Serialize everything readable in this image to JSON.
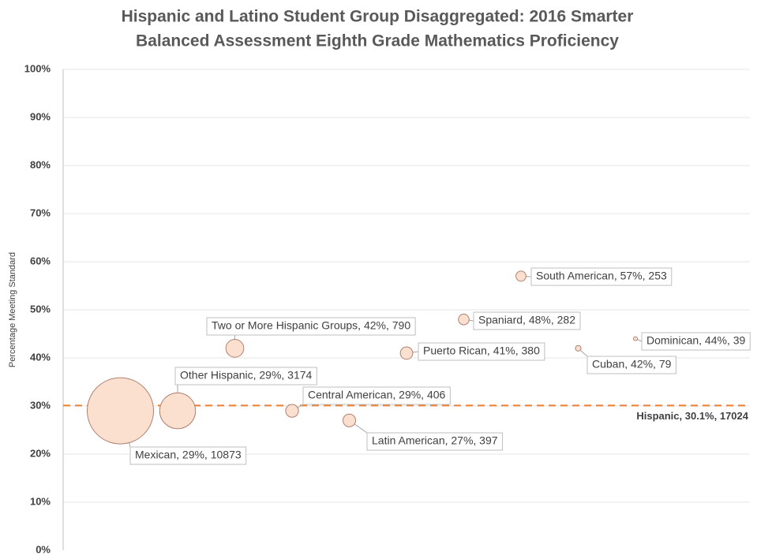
{
  "chart_data": {
    "type": "bubble",
    "title_lines": [
      "Hispanic and Latino Student Group Disaggregated: 2016 Smarter",
      "Balanced Assessment Eighth Grade Mathematics Proficiency"
    ],
    "y_label": "Percentage Meeting Standard",
    "categories": [
      "Mexican",
      "Other Hispanic",
      "Two or More Hispanic Groups",
      "Central American",
      "Latin American",
      "Puerto Rican",
      "Spaniard",
      "South American",
      "Cuban",
      "Dominican"
    ],
    "x": [
      1,
      2,
      3,
      4,
      5,
      6,
      7,
      8,
      9,
      10
    ],
    "values": [
      29,
      29,
      42,
      29,
      27,
      41,
      48,
      57,
      42,
      44
    ],
    "sizes": [
      10873,
      3174,
      790,
      406,
      397,
      380,
      282,
      253,
      79,
      39
    ],
    "value_labels": [
      "Mexican, 29%, 10873",
      "Other Hispanic, 29%, 3174",
      "Two or More Hispanic Groups, 42%, 790",
      "Central American, 29%, 406",
      "Latin American, 27%, 397",
      "Puerto Rican, 41%, 380",
      "Spaniard, 48%, 282",
      "South American, 57%, 253",
      "Cuban, 42%, 79",
      "Dominican, 44%, 39"
    ],
    "color": "#fbe0d0",
    "xlim": [
      0,
      12
    ],
    "ylim": [
      0,
      100
    ],
    "yticks": [
      {
        "value": 0,
        "label": "0%"
      },
      {
        "value": 10,
        "label": "10%"
      },
      {
        "value": 20,
        "label": "20%"
      },
      {
        "value": 30,
        "label": "30%"
      },
      {
        "value": 40,
        "label": "40%"
      },
      {
        "value": 50,
        "label": "50%"
      },
      {
        "value": 60,
        "label": "60%"
      },
      {
        "value": 70,
        "label": "70%"
      },
      {
        "value": 80,
        "label": "80%"
      },
      {
        "value": 90,
        "label": "90%"
      },
      {
        "value": 100,
        "label": "100%"
      }
    ],
    "grid": true,
    "reference": {
      "value": 30.1,
      "label": "Hispanic, 30.1%, 17024",
      "color": "#ed7d31"
    }
  }
}
